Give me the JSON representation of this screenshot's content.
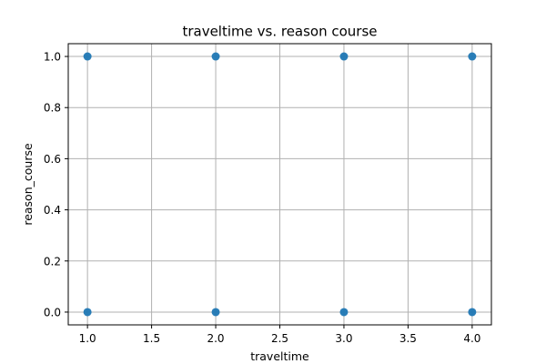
{
  "chart_data": {
    "type": "scatter",
    "title": "traveltime vs. reason course",
    "xlabel": "traveltime",
    "ylabel": "reason_course",
    "xlim": [
      0.85,
      4.15
    ],
    "ylim": [
      -0.05,
      1.05
    ],
    "xticks": [
      "1.0",
      "1.5",
      "2.0",
      "2.5",
      "3.0",
      "3.5",
      "4.0"
    ],
    "yticks": [
      "0.0",
      "0.2",
      "0.4",
      "0.6",
      "0.8",
      "1.0"
    ],
    "grid": true,
    "series": [
      {
        "color": "#1f77b4",
        "points": [
          {
            "x": 1.0,
            "y": 1.0
          },
          {
            "x": 2.0,
            "y": 1.0
          },
          {
            "x": 3.0,
            "y": 1.0
          },
          {
            "x": 4.0,
            "y": 1.0
          },
          {
            "x": 1.0,
            "y": 0.0
          },
          {
            "x": 2.0,
            "y": 0.0
          },
          {
            "x": 3.0,
            "y": 0.0
          },
          {
            "x": 4.0,
            "y": 0.0
          }
        ]
      }
    ]
  }
}
